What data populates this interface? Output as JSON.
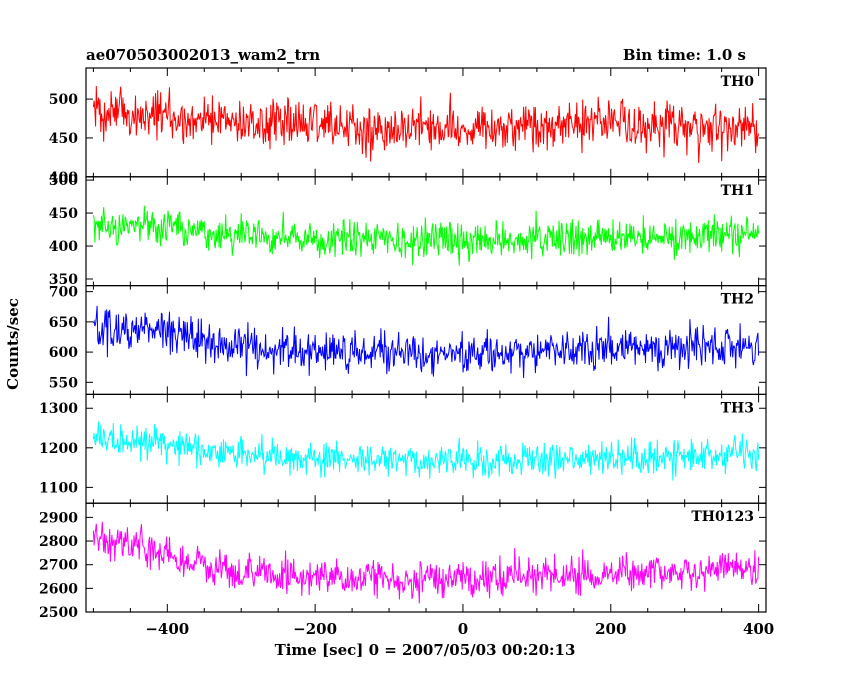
{
  "header": {
    "title": "ae070503002013_wam2_trn",
    "bin_time": "Bin time: 1.0 s"
  },
  "axes": {
    "xlabel": "Time [sec] 0 = 2007/05/03 00:20:13",
    "ylabel": "Counts/sec"
  },
  "chart_data": {
    "type": "line",
    "x_range": [
      -510,
      410
    ],
    "x_ticks": [
      -400,
      -200,
      0,
      200,
      400
    ],
    "x_tick_labels": [
      "−400",
      "−200",
      "0",
      "200",
      "400"
    ],
    "grid": false,
    "legend": "none; series label printed at top-right of each panel",
    "series": [
      {
        "name": "TH0",
        "color": "#ff0000",
        "ylim": [
          400,
          540
        ],
        "y_ticks": [
          400,
          450,
          500
        ],
        "y_tick_labels": [
          "400",
          "450",
          "500"
        ],
        "baseline": [
          [
            -500,
            485
          ],
          [
            -480,
            482
          ],
          [
            -300,
            470
          ],
          [
            -100,
            462
          ],
          [
            0,
            463
          ],
          [
            200,
            468
          ],
          [
            400,
            462
          ]
        ],
        "noise": 22
      },
      {
        "name": "TH1",
        "color": "#00ff00",
        "ylim": [
          340,
          505
        ],
        "y_ticks": [
          350,
          400,
          450,
          500
        ],
        "y_tick_labels": [
          "350",
          "400",
          "450",
          "500"
        ],
        "baseline": [
          [
            -500,
            432
          ],
          [
            -420,
            428
          ],
          [
            -300,
            415
          ],
          [
            -100,
            408
          ],
          [
            100,
            410
          ],
          [
            300,
            415
          ],
          [
            400,
            418
          ]
        ],
        "noise": 19
      },
      {
        "name": "TH2",
        "color": "#0000ff",
        "ylim": [
          530,
          710
        ],
        "y_ticks": [
          550,
          600,
          650,
          700
        ],
        "y_tick_labels": [
          "550",
          "600",
          "650",
          "700"
        ],
        "baseline": [
          [
            -500,
            640
          ],
          [
            -420,
            635
          ],
          [
            -330,
            612
          ],
          [
            -200,
            600
          ],
          [
            0,
            597
          ],
          [
            200,
            607
          ],
          [
            400,
            610
          ]
        ],
        "noise": 24
      },
      {
        "name": "TH3",
        "color": "#00ffff",
        "ylim": [
          1060,
          1335
        ],
        "y_ticks": [
          1100,
          1200,
          1300
        ],
        "y_tick_labels": [
          "1100",
          "1200",
          "1300"
        ],
        "baseline": [
          [
            -500,
            1225
          ],
          [
            -420,
            1215
          ],
          [
            -300,
            1185
          ],
          [
            -100,
            1168
          ],
          [
            100,
            1172
          ],
          [
            300,
            1178
          ],
          [
            400,
            1180
          ]
        ],
        "noise": 30
      },
      {
        "name": "TH0123",
        "color": "#ff00ff",
        "ylim": [
          2500,
          2960
        ],
        "y_ticks": [
          2500,
          2600,
          2700,
          2800,
          2900
        ],
        "y_tick_labels": [
          "2500",
          "2600",
          "2700",
          "2800",
          "2900"
        ],
        "baseline": [
          [
            -500,
            2820
          ],
          [
            -420,
            2770
          ],
          [
            -350,
            2680
          ],
          [
            -200,
            2650
          ],
          [
            0,
            2640
          ],
          [
            200,
            2665
          ],
          [
            400,
            2680
          ]
        ],
        "noise": 55
      }
    ]
  }
}
